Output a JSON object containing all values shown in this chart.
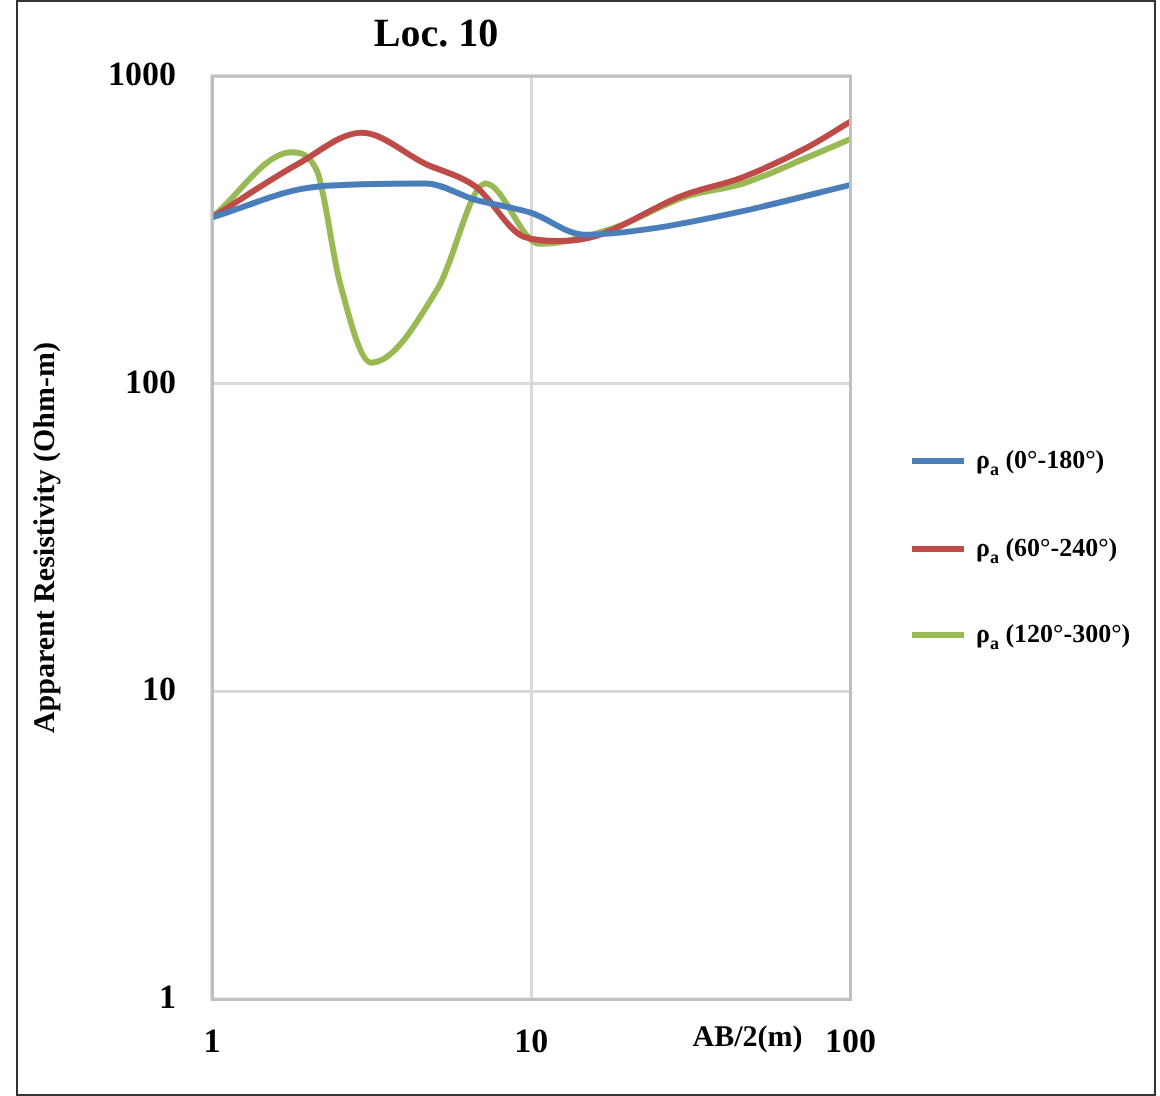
{
  "chart_data": {
    "type": "line",
    "title": "Loc. 10",
    "xlabel": "AB/2(m)",
    "ylabel": "Apparent Resistivity (Ohm-m)",
    "log": "xy",
    "xlim": [
      1,
      100
    ],
    "xticks": [
      1,
      10,
      100
    ],
    "ylim": [
      1,
      1000
    ],
    "yticks": [
      1,
      10,
      100,
      1000
    ],
    "grid": true,
    "legend": "right",
    "marker": "none",
    "series": [
      {
        "name": "ρ$_{a}$ (0°-180°)",
        "color": "#4a7ebb",
        "x": [
          1,
          2.13,
          4.67,
          6.7,
          10,
          14.7,
          23.2,
          46,
          100
        ],
        "values": [
          347,
          437,
          447,
          396,
          359,
          305,
          318,
          364,
          443
        ]
      },
      {
        "name": "ρ$_{a}$ (60°-240°)",
        "color": "#be4b48",
        "x": [
          1,
          1.86,
          2.94,
          4.67,
          6.7,
          9.5,
          12.2,
          16.1,
          29.3,
          46,
          73,
          100
        ],
        "values": [
          347,
          518,
          654,
          518,
          437,
          300,
          291,
          303,
          406,
          469,
          585,
          711
        ]
      },
      {
        "name": "ρ$_{a}$ (120°-300°)",
        "color": "#98b954",
        "x": [
          1,
          1.77,
          2.13,
          2.51,
          3.15,
          5.11,
          7.2,
          10.6,
          17.7,
          30.6,
          46,
          73,
          100
        ],
        "values": [
          347,
          565,
          493,
          215,
          117,
          205,
          447,
          285,
          318,
          406,
          447,
          543,
          624
        ]
      }
    ]
  }
}
